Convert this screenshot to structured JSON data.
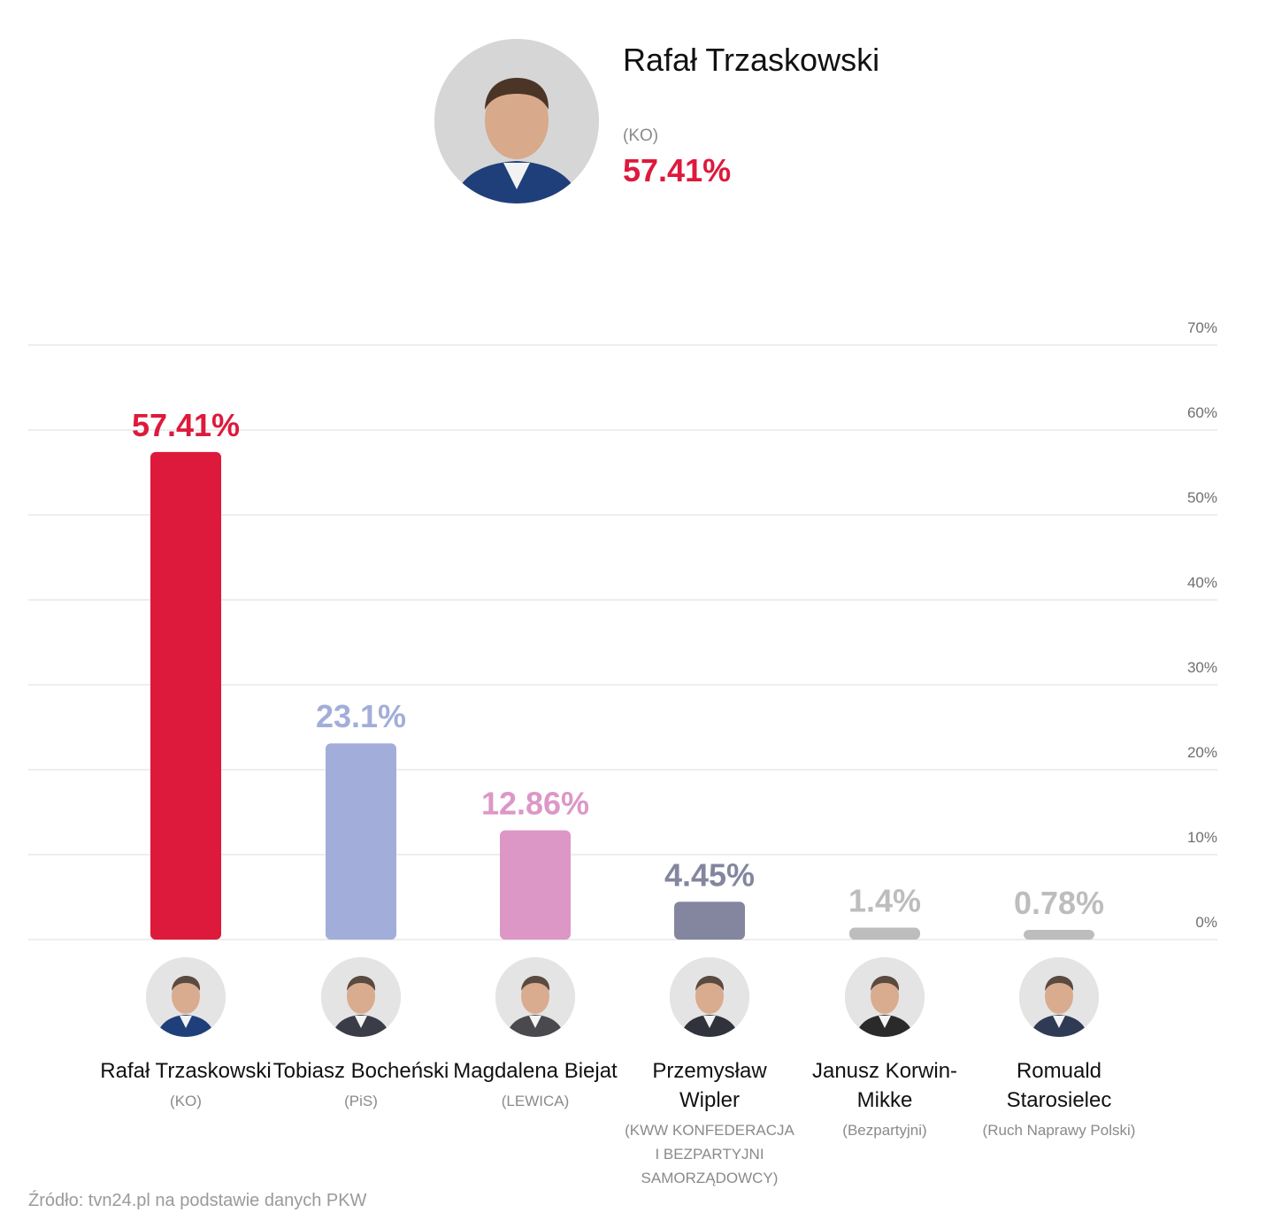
{
  "winner": {
    "name": "Rafał Trzaskowski",
    "party": "(KO)",
    "value": "57.41%",
    "color": "#dd1a3c"
  },
  "candidates": [
    {
      "name": "Rafał Trzaskowski",
      "party": "(KO)",
      "value_label": "57.41%",
      "color": "#dd1a3c",
      "photo_tone": "#1f3f7a"
    },
    {
      "name": "Tobiasz Bocheński",
      "party": "(PiS)",
      "value_label": "23.1%",
      "color": "#a2aed9",
      "photo_tone": "#3a3d48"
    },
    {
      "name": "Magdalena Biejat",
      "party": "(LEWICA)",
      "value_label": "12.86%",
      "color": "#dd97c7",
      "photo_tone": "#4a4a4e"
    },
    {
      "name": "Przemysław Wipler",
      "party": "(KWW KONFEDERACJA I BEZPARTYJNI SAMORZĄDOWCY)",
      "value_label": "4.45%",
      "color": "#84869f",
      "photo_tone": "#30333c"
    },
    {
      "name": "Janusz Korwin-Mikke",
      "party": "(Bezpartyjni)",
      "value_label": "1.4%",
      "color": "#bdbdbd",
      "photo_tone": "#2a2a2a"
    },
    {
      "name": "Romuald Starosielec",
      "party": "(Ruch Naprawy Polski)",
      "value_label": "0.78%",
      "color": "#bdbdbd",
      "photo_tone": "#2f3a55"
    }
  ],
  "chart_data": {
    "type": "bar",
    "categories": [
      "Rafał Trzaskowski",
      "Tobiasz Bocheński",
      "Magdalena Biejat",
      "Przemysław Wipler",
      "Janusz Korwin-Mikke",
      "Romuald Starosielec"
    ],
    "values": [
      57.41,
      23.1,
      12.86,
      4.45,
      1.4,
      0.78
    ],
    "ylim": [
      0,
      70
    ],
    "yticks": [
      0,
      10,
      20,
      30,
      40,
      50,
      60,
      70
    ],
    "ytick_labels": [
      "0%",
      "10%",
      "20%",
      "30%",
      "40%",
      "50%",
      "60%",
      "70%"
    ],
    "grid": true,
    "title": "",
    "xlabel": "",
    "ylabel": ""
  },
  "source": "Źródło: tvn24.pl na podstawie danych PKW"
}
